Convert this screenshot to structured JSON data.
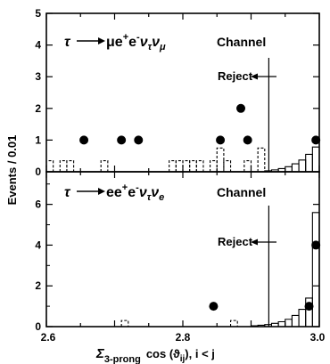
{
  "chart_data": [
    {
      "type": "histogram",
      "title_parts": {
        "lhs": "τ",
        "rhs_main": "μe",
        "plus": "+",
        "e2": "e",
        "minus": "-",
        "nu1": "ν",
        "sub1": "τ",
        "nu2": "ν",
        "sub2": "μ"
      },
      "channel_label": "Channel",
      "annotation": "Reject",
      "cut_value": 2.926,
      "xlim": [
        2.6,
        3.0
      ],
      "ylim": [
        0,
        5
      ],
      "yticks": [
        "0",
        "1",
        "2",
        "3",
        "4",
        "5"
      ],
      "data_points": [
        {
          "x": 2.655,
          "y": 1
        },
        {
          "x": 2.71,
          "y": 1
        },
        {
          "x": 2.735,
          "y": 1
        },
        {
          "x": 2.855,
          "y": 1
        },
        {
          "x": 2.885,
          "y": 2
        },
        {
          "x": 2.895,
          "y": 1
        },
        {
          "x": 2.995,
          "y": 1
        }
      ],
      "background_dashed": [
        {
          "x0": 2.6,
          "x1": 2.61,
          "y": 0.35
        },
        {
          "x0": 2.62,
          "x1": 2.63,
          "y": 0.35
        },
        {
          "x0": 2.63,
          "x1": 2.64,
          "y": 0.35
        },
        {
          "x0": 2.68,
          "x1": 2.69,
          "y": 0.35
        },
        {
          "x0": 2.78,
          "x1": 2.79,
          "y": 0.35
        },
        {
          "x0": 2.79,
          "x1": 2.8,
          "y": 0.35
        },
        {
          "x0": 2.8,
          "x1": 2.81,
          "y": 0.35
        },
        {
          "x0": 2.81,
          "x1": 2.82,
          "y": 0.35
        },
        {
          "x0": 2.82,
          "x1": 2.83,
          "y": 0.35
        },
        {
          "x0": 2.84,
          "x1": 2.85,
          "y": 0.35
        },
        {
          "x0": 2.85,
          "x1": 2.86,
          "y": 0.75
        },
        {
          "x0": 2.86,
          "x1": 2.87,
          "y": 0.35
        },
        {
          "x0": 2.89,
          "x1": 2.9,
          "y": 0.35
        },
        {
          "x0": 2.91,
          "x1": 2.92,
          "y": 0.75
        }
      ],
      "signal_solid": [
        {
          "x0": 2.92,
          "x1": 2.93,
          "y": 0.03
        },
        {
          "x0": 2.93,
          "x1": 2.94,
          "y": 0.06
        },
        {
          "x0": 2.94,
          "x1": 2.95,
          "y": 0.1
        },
        {
          "x0": 2.95,
          "x1": 2.96,
          "y": 0.16
        },
        {
          "x0": 2.96,
          "x1": 2.97,
          "y": 0.25
        },
        {
          "x0": 2.97,
          "x1": 2.98,
          "y": 0.37
        },
        {
          "x0": 2.98,
          "x1": 2.99,
          "y": 0.55
        },
        {
          "x0": 2.99,
          "x1": 3.0,
          "y": 0.78
        }
      ]
    },
    {
      "type": "histogram",
      "title_parts": {
        "lhs": "τ",
        "rhs_main": "ee",
        "plus": "+",
        "e2": "e",
        "minus": "-",
        "nu1": "ν",
        "sub1": "τ",
        "nu2": "ν",
        "sub2": "e"
      },
      "channel_label": "Channel",
      "annotation": "Reject",
      "cut_value": 2.926,
      "xlim": [
        2.6,
        3.0
      ],
      "ylim": [
        0,
        7.6
      ],
      "yticks": [
        "0",
        "2",
        "4",
        "6"
      ],
      "ytick_values": [
        0,
        2,
        4,
        6
      ],
      "data_points": [
        {
          "x": 2.845,
          "y": 1
        },
        {
          "x": 2.985,
          "y": 1
        },
        {
          "x": 2.995,
          "y": 4
        }
      ],
      "background_dashed": [
        {
          "x0": 2.71,
          "x1": 2.72,
          "y": 0.3
        },
        {
          "x0": 2.87,
          "x1": 2.88,
          "y": 0.3
        }
      ],
      "signal_solid": [
        {
          "x0": 2.9,
          "x1": 2.91,
          "y": 0.04
        },
        {
          "x0": 2.91,
          "x1": 2.92,
          "y": 0.07
        },
        {
          "x0": 2.92,
          "x1": 2.93,
          "y": 0.1
        },
        {
          "x0": 2.93,
          "x1": 2.94,
          "y": 0.16
        },
        {
          "x0": 2.94,
          "x1": 2.95,
          "y": 0.24
        },
        {
          "x0": 2.95,
          "x1": 2.96,
          "y": 0.36
        },
        {
          "x0": 2.96,
          "x1": 2.97,
          "y": 0.55
        },
        {
          "x0": 2.97,
          "x1": 2.98,
          "y": 0.85
        },
        {
          "x0": 2.98,
          "x1": 2.99,
          "y": 1.4
        },
        {
          "x0": 2.99,
          "x1": 3.0,
          "y": 5.6
        }
      ]
    }
  ],
  "axes": {
    "ylabel": "Events / 0.01",
    "xticks": [
      "2.6",
      "2.8",
      "3.0"
    ],
    "xtick_values": [
      2.6,
      2.8,
      3.0
    ],
    "xlabel_sigma": "Σ",
    "xlabel_sub": "3-prong",
    "xlabel_main": "cos (ϑ",
    "xlabel_sub2": "ij",
    "xlabel_tail": "),  i < j"
  }
}
